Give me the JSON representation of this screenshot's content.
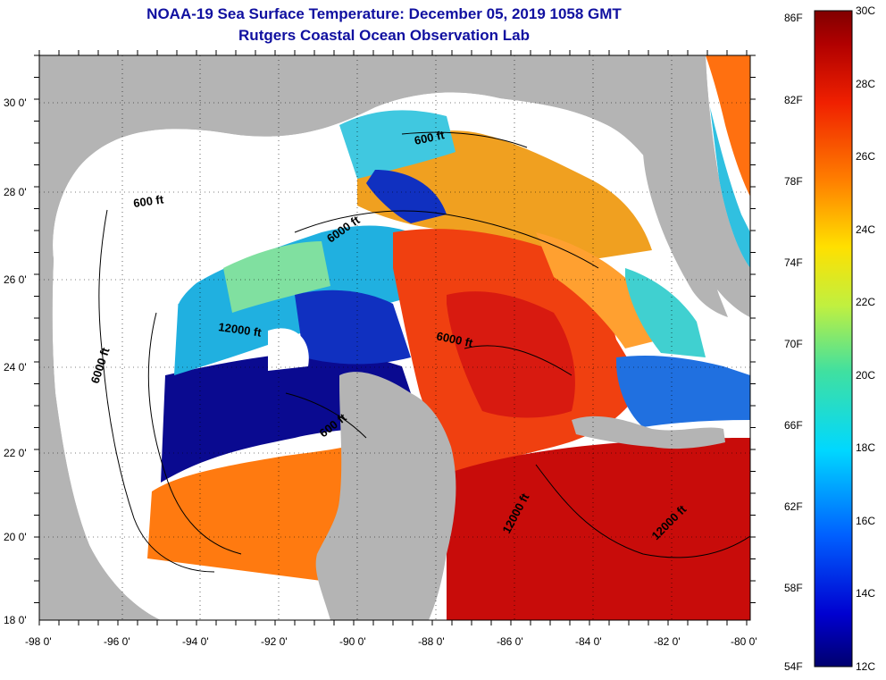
{
  "title": {
    "line1": "NOAA-19 Sea Surface Temperature:  December 05, 2019 1058 GMT",
    "line2": "Rutgers Coastal Ocean Observation Lab"
  },
  "axes": {
    "lat_labels": [
      "30 0'",
      "28 0'",
      "26 0'",
      "24 0'",
      "22 0'",
      "20 0'",
      "18 0'"
    ],
    "lon_labels": [
      "-98 0'",
      "-96 0'",
      "-94 0'",
      "-92 0'",
      "-90 0'",
      "-88 0'",
      "-86 0'",
      "-84 0'",
      "-82 0'",
      "-80 0'"
    ]
  },
  "contour_labels": {
    "nw_600": "600 ft",
    "w_6000": "6000 ft",
    "nc_6000": "6000 ft",
    "ne_600": "600 ft",
    "c_12000": "12000 ft",
    "e_6000": "6000 ft",
    "s_600": "600 ft",
    "yuc_12000": "12000 ft",
    "se_12000": "12000 ft"
  },
  "colorbar": {
    "fahrenheit": [
      "86F",
      "82F",
      "78F",
      "74F",
      "70F",
      "66F",
      "62F",
      "58F",
      "54F"
    ],
    "celsius": [
      "30C",
      "28C",
      "26C",
      "24C",
      "22C",
      "20C",
      "18C",
      "16C",
      "14C",
      "12C"
    ]
  },
  "colors": {
    "land": "#b4b4b4",
    "cloud": "#ffffff",
    "title": "#1010a0"
  }
}
